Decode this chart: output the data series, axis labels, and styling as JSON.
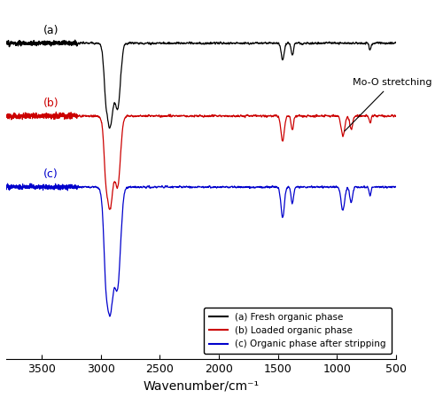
{
  "xmin": 500,
  "xmax": 3800,
  "xlabel": "Wavenumber/cm⁻¹",
  "line_a_color": "#000000",
  "line_b_color": "#cc0000",
  "line_c_color": "#0000cc",
  "label_a": "(a) Fresh organic phase",
  "label_b": "(b) Loaded organic phase",
  "label_c": "(c) Organic phase after stripping",
  "annotation_text": "Mo-O stretching",
  "baseline_a": 0.65,
  "baseline_b": 0.22,
  "baseline_c": -0.2,
  "noise_amplitude": 0.008,
  "xticks": [
    3500,
    3000,
    2500,
    2000,
    1500,
    1000,
    500
  ]
}
